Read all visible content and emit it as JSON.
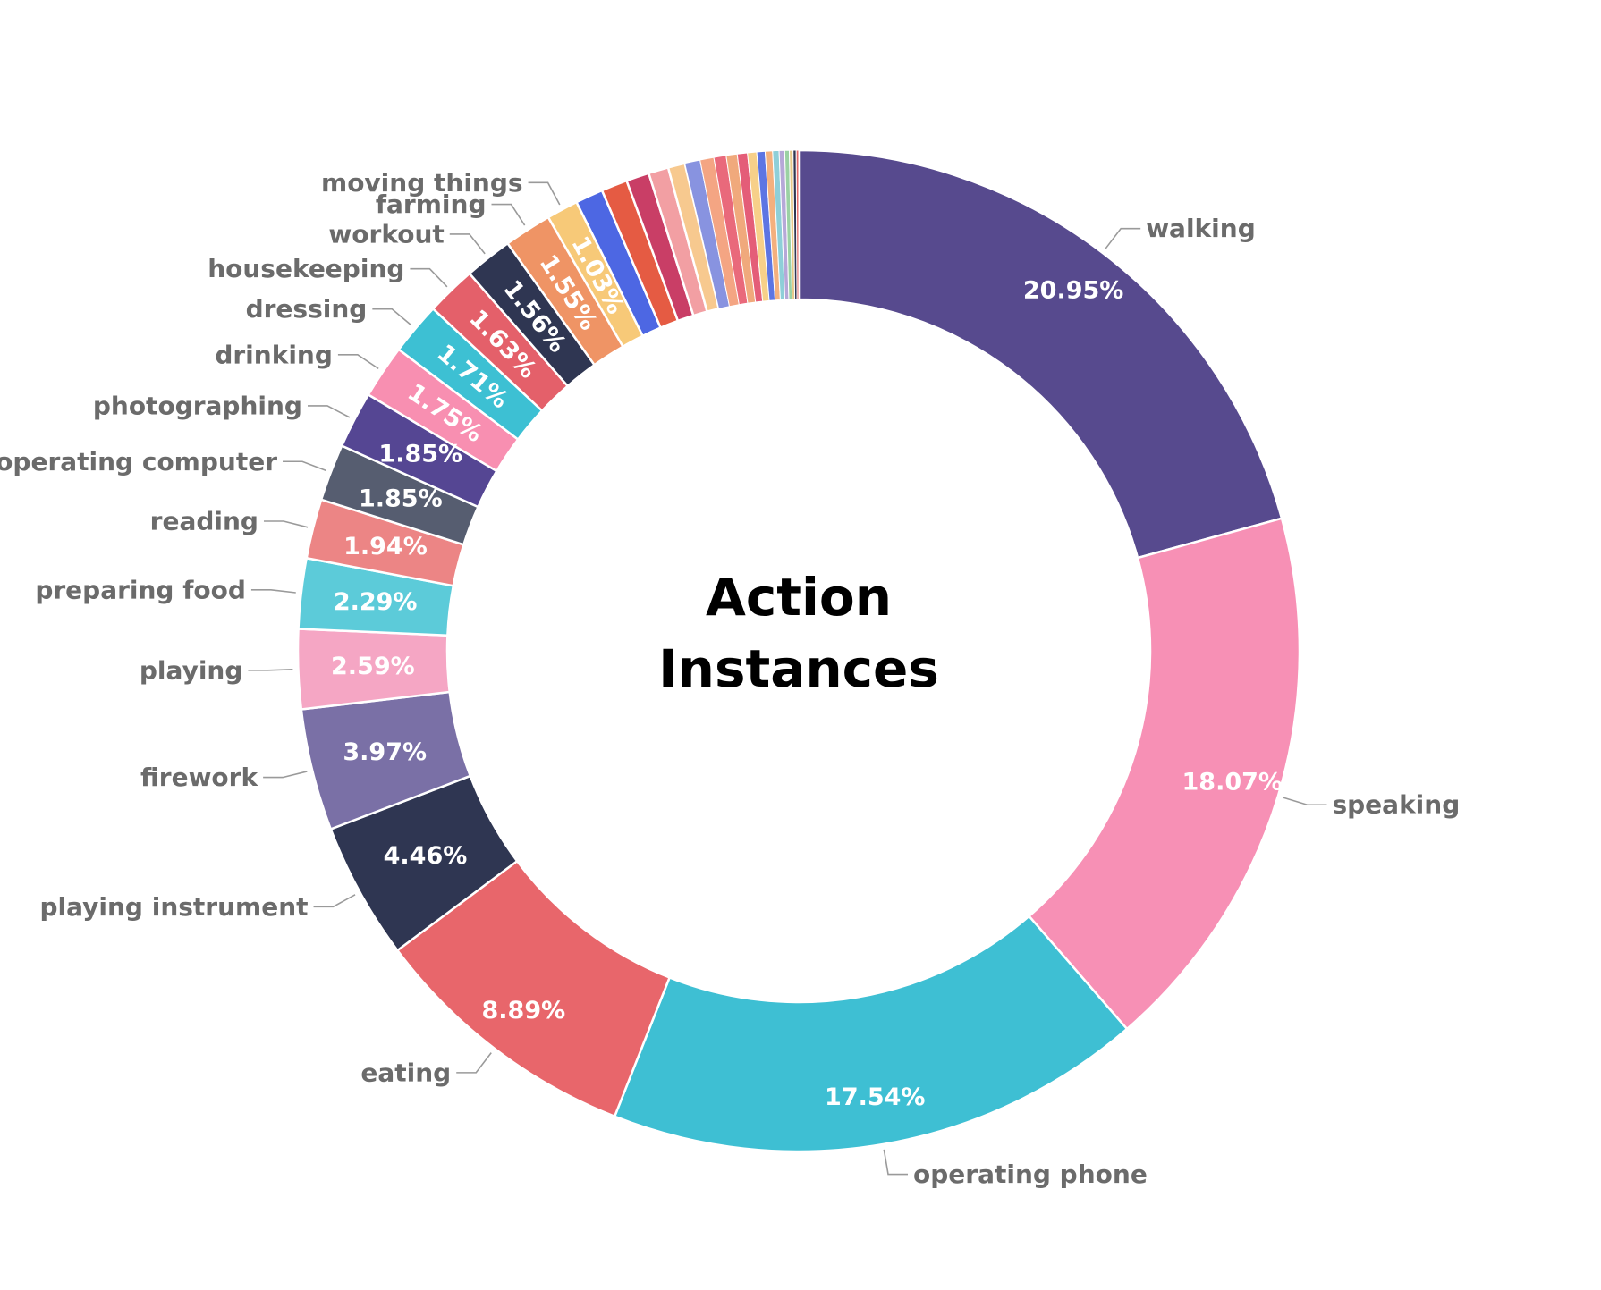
{
  "chart_data": {
    "type": "pie",
    "donut": true,
    "title": "Action Instances",
    "legend": "none",
    "slices": [
      {
        "label": "walking",
        "value": 20.95,
        "value_label": "20.95%",
        "color": "#574a8e"
      },
      {
        "label": "speaking",
        "value": 18.07,
        "value_label": "18.07%",
        "color": "#f790b5"
      },
      {
        "label": "operating phone",
        "value": 17.54,
        "value_label": "17.54%",
        "color": "#3ebfd3"
      },
      {
        "label": "eating",
        "value": 8.89,
        "value_label": "8.89%",
        "color": "#e8666b"
      },
      {
        "label": "playing instrument",
        "value": 4.46,
        "value_label": "4.46%",
        "color": "#2f3652"
      },
      {
        "label": "firework",
        "value": 3.97,
        "value_label": "3.97%",
        "color": "#7a70a6"
      },
      {
        "label": "playing",
        "value": 2.59,
        "value_label": "2.59%",
        "color": "#f5a6c4"
      },
      {
        "label": "preparing food",
        "value": 2.29,
        "value_label": "2.29%",
        "color": "#5ccbd9"
      },
      {
        "label": "reading",
        "value": 1.94,
        "value_label": "1.94%",
        "color": "#ec8585"
      },
      {
        "label": "operating computer",
        "value": 1.85,
        "value_label": "1.85%",
        "color": "#565d70"
      },
      {
        "label": "photographing",
        "value": 1.85,
        "value_label": "1.85%",
        "color": "#554693"
      },
      {
        "label": "drinking",
        "value": 1.75,
        "value_label": "1.75%",
        "color": "#f88fb1"
      },
      {
        "label": "dressing",
        "value": 1.71,
        "value_label": "1.71%",
        "color": "#3dc0d3"
      },
      {
        "label": "housekeeping",
        "value": 1.63,
        "value_label": "1.63%",
        "color": "#e4606a"
      },
      {
        "label": "workout",
        "value": 1.56,
        "value_label": "1.56%",
        "color": "#2f3652"
      },
      {
        "label": "farming",
        "value": 1.55,
        "value_label": "1.55%",
        "color": "#ef9465"
      },
      {
        "label": "moving things",
        "value": 1.03,
        "value_label": "1.03%",
        "color": "#f7c978"
      },
      {
        "label": "",
        "value": 0.9,
        "value_label": "",
        "color": "#4d67e3"
      },
      {
        "label": "",
        "value": 0.85,
        "value_label": "",
        "color": "#e55b43"
      },
      {
        "label": "",
        "value": 0.75,
        "value_label": "",
        "color": "#c93e66"
      },
      {
        "label": "",
        "value": 0.65,
        "value_label": "",
        "color": "#f29fa3"
      },
      {
        "label": "",
        "value": 0.55,
        "value_label": "",
        "color": "#f7c98f"
      },
      {
        "label": "",
        "value": 0.5,
        "value_label": "",
        "color": "#8893e0"
      },
      {
        "label": "",
        "value": 0.45,
        "value_label": "",
        "color": "#f4a583"
      },
      {
        "label": "",
        "value": 0.4,
        "value_label": "",
        "color": "#e9697b"
      },
      {
        "label": "",
        "value": 0.36,
        "value_label": "",
        "color": "#f0a97c"
      },
      {
        "label": "",
        "value": 0.33,
        "value_label": "",
        "color": "#e45d78"
      },
      {
        "label": "",
        "value": 0.3,
        "value_label": "",
        "color": "#f7d089"
      },
      {
        "label": "",
        "value": 0.27,
        "value_label": "",
        "color": "#5d75e3"
      },
      {
        "label": "",
        "value": 0.24,
        "value_label": "",
        "color": "#f4b07e"
      },
      {
        "label": "",
        "value": 0.21,
        "value_label": "",
        "color": "#8ecfd8"
      },
      {
        "label": "",
        "value": 0.18,
        "value_label": "",
        "color": "#b6a8d8"
      },
      {
        "label": "",
        "value": 0.15,
        "value_label": "",
        "color": "#9bd1a4"
      },
      {
        "label": "",
        "value": 0.12,
        "value_label": "",
        "color": "#e7c98a"
      },
      {
        "label": "",
        "value": 0.1,
        "value_label": "",
        "color": "#2f3652"
      },
      {
        "label": "",
        "value": 0.08,
        "value_label": "",
        "color": "#e36b6b"
      }
    ]
  }
}
